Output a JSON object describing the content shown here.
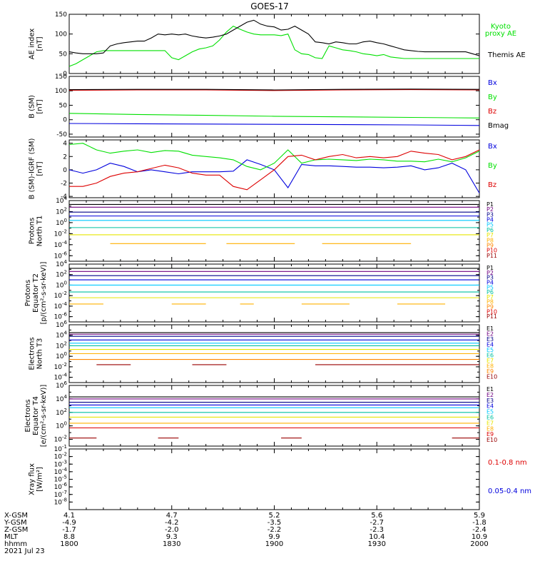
{
  "title": "GOES-17",
  "colors": {
    "black": "#000000",
    "green": "#00e000",
    "blue": "#0000dd",
    "red": "#dd0000",
    "darkred": "#990000",
    "yellow": "#e6e600",
    "gold": "#ffb000",
    "orange": "#ff8800",
    "cyan": "#00c8ff",
    "teal": "#00c0a0",
    "navy": "#000088",
    "purple": "#700080"
  },
  "time_axis": {
    "ticks": [
      "1800",
      "1830",
      "1900",
      "1930",
      "2000"
    ],
    "rows": [
      {
        "label": "X-GSM",
        "values": [
          "4.1",
          "4.7",
          "5.2",
          "5.6",
          "5.9"
        ]
      },
      {
        "label": "Y-GSM",
        "values": [
          "-4.9",
          "-4.2",
          "-3.5",
          "-2.7",
          "-1.8"
        ]
      },
      {
        "label": "Z-GSM",
        "values": [
          "-1.7",
          "-2.0",
          "-2.2",
          "-2.3",
          "-2.4"
        ]
      },
      {
        "label": "MLT",
        "values": [
          "8.8",
          "9.3",
          "9.9",
          "10.4",
          "10.9"
        ]
      },
      {
        "label": "hhmm",
        "values": [
          "1800",
          "1830",
          "1900",
          "1930",
          "2000"
        ]
      }
    ],
    "date": "2021 Jul 23"
  },
  "chart_data": [
    {
      "type": "line",
      "ylabel": [
        "AE index",
        "[nT]"
      ],
      "ylim": [
        0,
        150
      ],
      "yticks": [
        {
          "v": 0,
          "t": "0"
        },
        {
          "v": 50,
          "t": "50"
        },
        {
          "v": 100,
          "t": "100"
        },
        {
          "v": 150,
          "t": "150"
        }
      ],
      "x": [
        0,
        2,
        4,
        6,
        8,
        10,
        12,
        14,
        16,
        18,
        20,
        22,
        24,
        26,
        28,
        30,
        32,
        34,
        36,
        38,
        40,
        42,
        44,
        46,
        48,
        50,
        52,
        54,
        56,
        58,
        60,
        62,
        64,
        66,
        68,
        70,
        72,
        74,
        76,
        78,
        80,
        82,
        84,
        86,
        88,
        90,
        92,
        94,
        96,
        98,
        100,
        102,
        104,
        106,
        108,
        110,
        112,
        114,
        116,
        118,
        120
      ],
      "series": [
        {
          "name": "Kyoto proxy AE",
          "color_key": "green",
          "values": [
            18,
            25,
            35,
            45,
            55,
            58,
            58,
            58,
            58,
            58,
            58,
            58,
            58,
            58,
            58,
            40,
            35,
            45,
            55,
            62,
            65,
            70,
            85,
            105,
            120,
            112,
            105,
            100,
            98,
            98,
            98,
            96,
            100,
            60,
            50,
            48,
            40,
            38,
            70,
            65,
            60,
            58,
            55,
            50,
            48,
            45,
            48,
            42,
            40,
            38,
            38,
            38,
            38,
            38,
            38,
            38,
            38,
            38,
            38,
            38,
            38
          ]
        },
        {
          "name": "Themis AE",
          "color_key": "black",
          "values": [
            55,
            52,
            50,
            50,
            50,
            52,
            70,
            75,
            78,
            80,
            82,
            82,
            90,
            100,
            98,
            100,
            98,
            100,
            95,
            92,
            90,
            92,
            95,
            100,
            110,
            120,
            130,
            135,
            125,
            120,
            118,
            110,
            112,
            120,
            110,
            100,
            80,
            78,
            75,
            80,
            78,
            75,
            75,
            80,
            82,
            78,
            75,
            70,
            65,
            60,
            58,
            56,
            55,
            55,
            55,
            55,
            55,
            55,
            55,
            50,
            45
          ]
        }
      ]
    },
    {
      "type": "line",
      "ylabel": [
        "B (SM)",
        "[nT]"
      ],
      "ylim": [
        -60,
        150
      ],
      "yticks": [
        {
          "v": -50,
          "t": "-50"
        },
        {
          "v": 0,
          "t": "0"
        },
        {
          "v": 50,
          "t": "50"
        },
        {
          "v": 100,
          "t": "100"
        },
        {
          "v": 150,
          "t": "150"
        }
      ],
      "x": [
        0,
        20,
        40,
        60,
        80,
        100,
        120
      ],
      "series": [
        {
          "name": "Bx",
          "color_key": "blue",
          "values": [
            -13,
            -14,
            -15,
            -16,
            -17,
            -18,
            -20
          ]
        },
        {
          "name": "By",
          "color_key": "green",
          "values": [
            22,
            18,
            15,
            12,
            10,
            8,
            6
          ]
        },
        {
          "name": "Bz",
          "color_key": "red",
          "values": [
            102,
            103,
            103,
            101,
            103,
            104,
            103
          ]
        },
        {
          "name": "Bmag",
          "color_key": "black",
          "values": [
            104,
            105,
            105,
            103,
            105,
            106,
            105
          ]
        }
      ]
    },
    {
      "type": "line",
      "ylabel": [
        "B (SM)-IGRF (SM)",
        "[nT]"
      ],
      "ylim": [
        -4.2,
        4.5
      ],
      "yticks": [
        {
          "v": -4,
          "t": "-4"
        },
        {
          "v": -2,
          "t": "-2"
        },
        {
          "v": 0,
          "t": "0"
        },
        {
          "v": 2,
          "t": "2"
        },
        {
          "v": 4,
          "t": "4"
        }
      ],
      "x": [
        0,
        4,
        8,
        12,
        16,
        20,
        24,
        28,
        32,
        36,
        40,
        44,
        48,
        52,
        56,
        60,
        64,
        68,
        72,
        76,
        80,
        84,
        88,
        92,
        96,
        100,
        104,
        108,
        112,
        116,
        120
      ],
      "series": [
        {
          "name": "Bx",
          "color_key": "blue",
          "values": [
            0,
            -0.5,
            0,
            1,
            0.5,
            -0.3,
            0,
            -0.3,
            -0.6,
            -0.3,
            -0.3,
            -0.3,
            -0.2,
            1.5,
            0.8,
            0,
            -2.7,
            0.8,
            0.6,
            0.6,
            0.5,
            0.4,
            0.4,
            0.3,
            0.4,
            0.6,
            0,
            0.3,
            1,
            0,
            -3.5
          ]
        },
        {
          "name": "By",
          "color_key": "green",
          "values": [
            3.8,
            4,
            3,
            2.5,
            2.8,
            3,
            2.6,
            2.9,
            2.8,
            2.2,
            2,
            1.8,
            1.5,
            0.5,
            0,
            1,
            3,
            1,
            1.5,
            1.6,
            1.5,
            1.4,
            1.6,
            1.5,
            1.3,
            1.3,
            1.2,
            1.6,
            1.2,
            1.8,
            2.8
          ]
        },
        {
          "name": "Bz",
          "color_key": "red",
          "values": [
            -2.5,
            -2.5,
            -2,
            -1,
            -0.5,
            -0.3,
            0.2,
            0.7,
            0.3,
            -0.5,
            -0.8,
            -0.8,
            -2.5,
            -3,
            -1.5,
            0,
            2,
            2.2,
            1.5,
            2,
            2.3,
            1.8,
            2,
            1.8,
            2,
            2.8,
            2.5,
            2.3,
            1.5,
            2,
            3
          ]
        }
      ]
    },
    {
      "type": "line",
      "log": true,
      "ylabel": [
        "Protons",
        "North T1"
      ],
      "ylim": [
        -7,
        4
      ],
      "yticks": [
        {
          "v": 4,
          "t": "10^4"
        },
        {
          "v": 2,
          "t": "10^2"
        },
        {
          "v": 0,
          "t": "10^0"
        },
        {
          "v": -2,
          "t": "10^-2"
        },
        {
          "v": -4,
          "t": "10^-4"
        },
        {
          "v": -6,
          "t": "10^-6"
        }
      ],
      "levels": [
        {
          "name": "P1",
          "color_key": "black",
          "v": 3.3
        },
        {
          "name": "P2",
          "color_key": "purple",
          "v": 2.8
        },
        {
          "name": "P3",
          "color_key": "navy",
          "v": 1.9
        },
        {
          "name": "P4",
          "color_key": "blue",
          "v": 1.2
        },
        {
          "name": "P5",
          "color_key": "cyan",
          "v": 0.4
        },
        {
          "name": "P6",
          "color_key": "teal",
          "v": -0.9
        },
        {
          "name": "P7",
          "color_key": "yellow",
          "v": -2.2
        },
        {
          "name": "P8",
          "color_key": "gold",
          "v": -3.8,
          "segments": [
            [
              12,
              40
            ],
            [
              46,
              66
            ],
            [
              74,
              100
            ]
          ]
        },
        {
          "name": "P9",
          "color_key": "orange"
        },
        {
          "name": "P10",
          "color_key": "red"
        },
        {
          "name": "P11",
          "color_key": "darkred"
        }
      ]
    },
    {
      "type": "line",
      "log": true,
      "ylabel": [
        "Protons",
        "Equator T2",
        "[p/(cm²-s-sr-keV)]"
      ],
      "ylim": [
        -7,
        4
      ],
      "yticks": [
        {
          "v": 4,
          "t": "10^4"
        },
        {
          "v": 2,
          "t": "10^2"
        },
        {
          "v": 0,
          "t": "10^0"
        },
        {
          "v": -2,
          "t": "10^-2"
        },
        {
          "v": -4,
          "t": "10^-4"
        },
        {
          "v": -6,
          "t": "10^-6"
        }
      ],
      "levels": [
        {
          "name": "P1",
          "color_key": "black",
          "v": 3.2
        },
        {
          "name": "P2",
          "color_key": "purple",
          "v": 2.6
        },
        {
          "name": "P3",
          "color_key": "navy",
          "v": 1.8
        },
        {
          "name": "P4",
          "color_key": "blue",
          "v": 1.0
        },
        {
          "name": "P5",
          "color_key": "cyan",
          "v": 0.0
        },
        {
          "name": "P6",
          "color_key": "teal",
          "v": -1.3
        },
        {
          "name": "P7",
          "color_key": "yellow",
          "v": -2.4
        },
        {
          "name": "P8",
          "color_key": "gold",
          "v": -3.6,
          "segments": [
            [
              0,
              10
            ],
            [
              30,
              40
            ],
            [
              50,
              54
            ],
            [
              68,
              82
            ],
            [
              96,
              110
            ]
          ]
        },
        {
          "name": "P9",
          "color_key": "orange"
        },
        {
          "name": "P10",
          "color_key": "red"
        },
        {
          "name": "P11",
          "color_key": "darkred"
        }
      ]
    },
    {
      "type": "line",
      "log": true,
      "ylabel": [
        "Electrons",
        "North T3"
      ],
      "ylim": [
        -5,
        6
      ],
      "yticks": [
        {
          "v": 6,
          "t": "10^6"
        },
        {
          "v": 4,
          "t": "10^4"
        },
        {
          "v": 2,
          "t": "10^2"
        },
        {
          "v": 0,
          "t": "10^0"
        },
        {
          "v": -2,
          "t": "10^-2"
        },
        {
          "v": -4,
          "t": "10^-4"
        }
      ],
      "levels": [
        {
          "name": "E1",
          "color_key": "black",
          "v": 4.5
        },
        {
          "name": "E2",
          "color_key": "purple",
          "v": 4.2
        },
        {
          "name": "E3",
          "color_key": "navy",
          "v": 3.8
        },
        {
          "name": "E4",
          "color_key": "blue",
          "v": 3.1
        },
        {
          "name": "E5",
          "color_key": "cyan",
          "v": 2.5
        },
        {
          "name": "E6",
          "color_key": "teal",
          "v": 2.0
        },
        {
          "name": "E7",
          "color_key": "yellow",
          "v": 1.3
        },
        {
          "name": "E8",
          "color_key": "gold",
          "v": 0.5
        },
        {
          "name": "E9",
          "color_key": "orange",
          "v": -0.6
        },
        {
          "name": "E10",
          "color_key": "darkred",
          "v": -1.6,
          "segments": [
            [
              8,
              18
            ],
            [
              36,
              46
            ],
            [
              72,
              120
            ]
          ]
        }
      ]
    },
    {
      "type": "line",
      "log": true,
      "ylabel": [
        "Electrons",
        "Equator T4",
        "[e/(cm²-s-sr-keV)]"
      ],
      "ylim": [
        -3,
        6
      ],
      "yticks": [
        {
          "v": 6,
          "t": "10^6"
        },
        {
          "v": 4,
          "t": "10^4"
        },
        {
          "v": 2,
          "t": "10^2"
        },
        {
          "v": 0,
          "t": "10^0"
        },
        {
          "v": -2,
          "t": "10^-2"
        }
      ],
      "levels": [
        {
          "name": "E1",
          "color_key": "black",
          "v": 4.3
        },
        {
          "name": "E2",
          "color_key": "purple",
          "v": 4.0
        },
        {
          "name": "E3",
          "color_key": "navy",
          "v": 3.5
        },
        {
          "name": "E4",
          "color_key": "blue",
          "v": 3.1
        },
        {
          "name": "E5",
          "color_key": "cyan",
          "v": 2.7
        },
        {
          "name": "E6",
          "color_key": "teal",
          "v": 2.0
        },
        {
          "name": "E7",
          "color_key": "yellow",
          "v": 1.3
        },
        {
          "name": "E8",
          "color_key": "gold",
          "v": 0.4
        },
        {
          "name": "E9",
          "color_key": "red",
          "v": -0.3
        },
        {
          "name": "E10",
          "color_key": "darkred",
          "v": -1.8,
          "segments": [
            [
              0,
              8
            ],
            [
              26,
              32
            ],
            [
              62,
              68
            ],
            [
              112,
              120
            ]
          ]
        }
      ]
    },
    {
      "type": "line",
      "log": true,
      "ylabel": [
        "Xray flux",
        "[W/m²]"
      ],
      "ylim": [
        -9,
        -1
      ],
      "yticks": [
        {
          "v": -1,
          "t": "10^-1"
        },
        {
          "v": -2,
          "t": "10^-2"
        },
        {
          "v": -3,
          "t": "10^-3"
        },
        {
          "v": -4,
          "t": "10^-4"
        },
        {
          "v": -5,
          "t": "10^-5"
        },
        {
          "v": -6,
          "t": "10^-6"
        },
        {
          "v": -7,
          "t": "10^-7"
        },
        {
          "v": -8,
          "t": "10^-8"
        }
      ],
      "series": [
        {
          "name": "0.1-0.8 nm",
          "color_key": "red",
          "values": []
        },
        {
          "name": "0.05-0.4 nm",
          "color_key": "blue",
          "values": []
        }
      ]
    }
  ]
}
